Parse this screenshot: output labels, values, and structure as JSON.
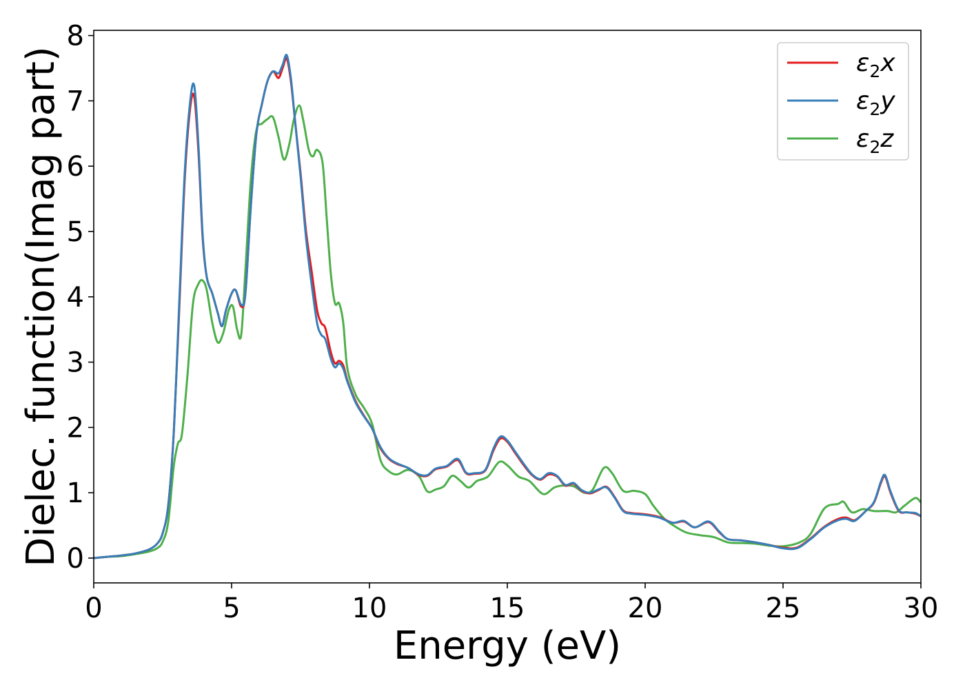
{
  "chart_data": {
    "type": "line",
    "title": "",
    "xlabel": "Energy (eV)",
    "ylabel": "Dielec. function(Imag part)",
    "xlim": [
      0,
      30
    ],
    "ylim": [
      -0.38,
      8.08
    ],
    "xticks": [
      0,
      5,
      10,
      15,
      20,
      25,
      30
    ],
    "yticks": [
      0,
      1,
      2,
      3,
      4,
      5,
      6,
      7,
      8
    ],
    "grid": false,
    "legend_position": "top-right",
    "series": [
      {
        "name": "ε₂x",
        "legend_base": "ε",
        "legend_sub": "2",
        "legend_suffix": "x",
        "color": "#e41a1c",
        "points": [
          [
            0,
            0
          ],
          [
            0.5,
            0.02
          ],
          [
            1,
            0.04
          ],
          [
            1.5,
            0.07
          ],
          [
            2,
            0.13
          ],
          [
            2.3,
            0.22
          ],
          [
            2.5,
            0.38
          ],
          [
            2.7,
            0.8
          ],
          [
            2.9,
            1.9
          ],
          [
            3.1,
            3.8
          ],
          [
            3.3,
            5.8
          ],
          [
            3.5,
            6.9
          ],
          [
            3.65,
            7.05
          ],
          [
            3.8,
            6.2
          ],
          [
            3.95,
            4.9
          ],
          [
            4.1,
            4.3
          ],
          [
            4.3,
            4.05
          ],
          [
            4.5,
            3.75
          ],
          [
            4.65,
            3.55
          ],
          [
            4.8,
            3.8
          ],
          [
            5.0,
            4.05
          ],
          [
            5.15,
            4.1
          ],
          [
            5.35,
            3.85
          ],
          [
            5.5,
            4.05
          ],
          [
            5.7,
            5.4
          ],
          [
            5.9,
            6.5
          ],
          [
            6.1,
            6.95
          ],
          [
            6.3,
            7.3
          ],
          [
            6.5,
            7.45
          ],
          [
            6.7,
            7.35
          ],
          [
            6.85,
            7.5
          ],
          [
            7.0,
            7.65
          ],
          [
            7.15,
            7.3
          ],
          [
            7.3,
            6.7
          ],
          [
            7.5,
            5.9
          ],
          [
            7.7,
            5.0
          ],
          [
            7.9,
            4.4
          ],
          [
            8.1,
            3.8
          ],
          [
            8.25,
            3.6
          ],
          [
            8.4,
            3.52
          ],
          [
            8.6,
            3.15
          ],
          [
            8.75,
            2.98
          ],
          [
            8.9,
            3.02
          ],
          [
            9.05,
            2.95
          ],
          [
            9.2,
            2.72
          ],
          [
            9.5,
            2.4
          ],
          [
            9.8,
            2.18
          ],
          [
            10.1,
            1.98
          ],
          [
            10.4,
            1.68
          ],
          [
            10.7,
            1.52
          ],
          [
            11.0,
            1.44
          ],
          [
            11.4,
            1.38
          ],
          [
            11.8,
            1.27
          ],
          [
            12.1,
            1.26
          ],
          [
            12.4,
            1.36
          ],
          [
            12.8,
            1.4
          ],
          [
            13.2,
            1.5
          ],
          [
            13.5,
            1.3
          ],
          [
            13.8,
            1.29
          ],
          [
            14.2,
            1.34
          ],
          [
            14.5,
            1.65
          ],
          [
            14.75,
            1.83
          ],
          [
            15.0,
            1.78
          ],
          [
            15.3,
            1.6
          ],
          [
            15.6,
            1.42
          ],
          [
            15.9,
            1.27
          ],
          [
            16.2,
            1.2
          ],
          [
            16.5,
            1.28
          ],
          [
            16.8,
            1.25
          ],
          [
            17.1,
            1.11
          ],
          [
            17.4,
            1.14
          ],
          [
            17.7,
            1.03
          ],
          [
            18.0,
            0.99
          ],
          [
            18.3,
            1.04
          ],
          [
            18.6,
            1.09
          ],
          [
            18.9,
            0.93
          ],
          [
            19.2,
            0.73
          ],
          [
            19.5,
            0.69
          ],
          [
            20.0,
            0.67
          ],
          [
            20.5,
            0.63
          ],
          [
            21.0,
            0.54
          ],
          [
            21.4,
            0.56
          ],
          [
            21.8,
            0.47
          ],
          [
            22.3,
            0.55
          ],
          [
            22.7,
            0.39
          ],
          [
            23.0,
            0.29
          ],
          [
            23.5,
            0.27
          ],
          [
            24.0,
            0.24
          ],
          [
            24.5,
            0.2
          ],
          [
            25.0,
            0.16
          ],
          [
            25.5,
            0.16
          ],
          [
            26.0,
            0.3
          ],
          [
            26.5,
            0.48
          ],
          [
            27.0,
            0.6
          ],
          [
            27.3,
            0.62
          ],
          [
            27.6,
            0.58
          ],
          [
            28.0,
            0.72
          ],
          [
            28.3,
            0.85
          ],
          [
            28.55,
            1.15
          ],
          [
            28.7,
            1.25
          ],
          [
            28.9,
            1.0
          ],
          [
            29.2,
            0.72
          ],
          [
            29.5,
            0.7
          ],
          [
            29.8,
            0.68
          ],
          [
            30,
            0.64
          ]
        ]
      },
      {
        "name": "ε₂y",
        "legend_base": "ε",
        "legend_sub": "2",
        "legend_suffix": "y",
        "color": "#377eb8",
        "points": [
          [
            0,
            0
          ],
          [
            0.5,
            0.02
          ],
          [
            1,
            0.04
          ],
          [
            1.5,
            0.07
          ],
          [
            2,
            0.13
          ],
          [
            2.3,
            0.22
          ],
          [
            2.5,
            0.38
          ],
          [
            2.7,
            0.8
          ],
          [
            2.9,
            1.9
          ],
          [
            3.1,
            3.9
          ],
          [
            3.3,
            5.9
          ],
          [
            3.5,
            7.0
          ],
          [
            3.65,
            7.22
          ],
          [
            3.8,
            6.3
          ],
          [
            3.95,
            4.95
          ],
          [
            4.1,
            4.3
          ],
          [
            4.3,
            4.05
          ],
          [
            4.5,
            3.75
          ],
          [
            4.65,
            3.55
          ],
          [
            4.8,
            3.8
          ],
          [
            5.0,
            4.05
          ],
          [
            5.15,
            4.1
          ],
          [
            5.35,
            3.88
          ],
          [
            5.5,
            4.05
          ],
          [
            5.7,
            5.4
          ],
          [
            5.9,
            6.5
          ],
          [
            6.1,
            6.95
          ],
          [
            6.3,
            7.3
          ],
          [
            6.5,
            7.45
          ],
          [
            6.7,
            7.42
          ],
          [
            6.85,
            7.55
          ],
          [
            7.0,
            7.7
          ],
          [
            7.15,
            7.35
          ],
          [
            7.3,
            6.7
          ],
          [
            7.5,
            5.85
          ],
          [
            7.7,
            4.9
          ],
          [
            7.9,
            4.2
          ],
          [
            8.1,
            3.6
          ],
          [
            8.25,
            3.42
          ],
          [
            8.4,
            3.35
          ],
          [
            8.6,
            3.05
          ],
          [
            8.75,
            2.92
          ],
          [
            8.9,
            2.98
          ],
          [
            9.05,
            2.9
          ],
          [
            9.2,
            2.7
          ],
          [
            9.5,
            2.38
          ],
          [
            9.8,
            2.17
          ],
          [
            10.1,
            1.98
          ],
          [
            10.4,
            1.7
          ],
          [
            10.7,
            1.53
          ],
          [
            11.0,
            1.45
          ],
          [
            11.4,
            1.38
          ],
          [
            11.8,
            1.28
          ],
          [
            12.1,
            1.27
          ],
          [
            12.4,
            1.37
          ],
          [
            12.8,
            1.41
          ],
          [
            13.2,
            1.52
          ],
          [
            13.5,
            1.31
          ],
          [
            13.8,
            1.3
          ],
          [
            14.2,
            1.35
          ],
          [
            14.5,
            1.68
          ],
          [
            14.75,
            1.86
          ],
          [
            15.0,
            1.8
          ],
          [
            15.3,
            1.62
          ],
          [
            15.6,
            1.44
          ],
          [
            15.9,
            1.28
          ],
          [
            16.2,
            1.21
          ],
          [
            16.5,
            1.3
          ],
          [
            16.8,
            1.26
          ],
          [
            17.1,
            1.12
          ],
          [
            17.4,
            1.15
          ],
          [
            17.7,
            1.04
          ],
          [
            18.0,
            1.0
          ],
          [
            18.3,
            1.05
          ],
          [
            18.6,
            1.08
          ],
          [
            18.9,
            0.92
          ],
          [
            19.2,
            0.72
          ],
          [
            19.5,
            0.68
          ],
          [
            20.0,
            0.66
          ],
          [
            20.5,
            0.62
          ],
          [
            21.0,
            0.54
          ],
          [
            21.4,
            0.57
          ],
          [
            21.8,
            0.47
          ],
          [
            22.3,
            0.56
          ],
          [
            22.7,
            0.4
          ],
          [
            23.0,
            0.29
          ],
          [
            23.5,
            0.27
          ],
          [
            24.0,
            0.24
          ],
          [
            24.5,
            0.2
          ],
          [
            25.0,
            0.15
          ],
          [
            25.5,
            0.15
          ],
          [
            26.0,
            0.29
          ],
          [
            26.5,
            0.47
          ],
          [
            27.0,
            0.58
          ],
          [
            27.3,
            0.6
          ],
          [
            27.6,
            0.57
          ],
          [
            28.0,
            0.72
          ],
          [
            28.3,
            0.86
          ],
          [
            28.55,
            1.17
          ],
          [
            28.7,
            1.27
          ],
          [
            28.9,
            1.02
          ],
          [
            29.2,
            0.73
          ],
          [
            29.5,
            0.7
          ],
          [
            29.8,
            0.69
          ],
          [
            30,
            0.64
          ]
        ]
      },
      {
        "name": "ε₂z",
        "legend_base": "ε",
        "legend_sub": "2",
        "legend_suffix": "z",
        "color": "#4daf4a",
        "points": [
          [
            0,
            0
          ],
          [
            0.5,
            0.02
          ],
          [
            1,
            0.03
          ],
          [
            1.5,
            0.06
          ],
          [
            2,
            0.1
          ],
          [
            2.3,
            0.15
          ],
          [
            2.5,
            0.25
          ],
          [
            2.7,
            0.55
          ],
          [
            2.9,
            1.4
          ],
          [
            3.05,
            1.75
          ],
          [
            3.2,
            1.9
          ],
          [
            3.4,
            2.8
          ],
          [
            3.6,
            3.9
          ],
          [
            3.8,
            4.2
          ],
          [
            3.95,
            4.25
          ],
          [
            4.1,
            4.1
          ],
          [
            4.3,
            3.6
          ],
          [
            4.5,
            3.3
          ],
          [
            4.7,
            3.45
          ],
          [
            4.9,
            3.8
          ],
          [
            5.05,
            3.85
          ],
          [
            5.2,
            3.5
          ],
          [
            5.35,
            3.42
          ],
          [
            5.5,
            4.4
          ],
          [
            5.7,
            5.8
          ],
          [
            5.9,
            6.55
          ],
          [
            6.1,
            6.65
          ],
          [
            6.3,
            6.72
          ],
          [
            6.5,
            6.75
          ],
          [
            6.7,
            6.45
          ],
          [
            6.9,
            6.1
          ],
          [
            7.1,
            6.35
          ],
          [
            7.25,
            6.7
          ],
          [
            7.45,
            6.93
          ],
          [
            7.6,
            6.7
          ],
          [
            7.8,
            6.25
          ],
          [
            7.95,
            6.15
          ],
          [
            8.1,
            6.25
          ],
          [
            8.3,
            6.05
          ],
          [
            8.45,
            5.2
          ],
          [
            8.6,
            4.35
          ],
          [
            8.75,
            3.9
          ],
          [
            8.9,
            3.9
          ],
          [
            9.05,
            3.6
          ],
          [
            9.2,
            2.9
          ],
          [
            9.5,
            2.5
          ],
          [
            9.8,
            2.3
          ],
          [
            10.1,
            2.05
          ],
          [
            10.4,
            1.5
          ],
          [
            10.7,
            1.33
          ],
          [
            11.0,
            1.28
          ],
          [
            11.4,
            1.35
          ],
          [
            11.8,
            1.25
          ],
          [
            12.1,
            1.02
          ],
          [
            12.4,
            1.05
          ],
          [
            12.7,
            1.1
          ],
          [
            13.0,
            1.26
          ],
          [
            13.3,
            1.18
          ],
          [
            13.6,
            1.08
          ],
          [
            13.9,
            1.18
          ],
          [
            14.3,
            1.25
          ],
          [
            14.7,
            1.47
          ],
          [
            15.0,
            1.42
          ],
          [
            15.4,
            1.25
          ],
          [
            15.8,
            1.18
          ],
          [
            16.3,
            0.98
          ],
          [
            16.7,
            1.08
          ],
          [
            17.0,
            1.11
          ],
          [
            17.4,
            1.1
          ],
          [
            17.8,
            1.0
          ],
          [
            18.1,
            1.05
          ],
          [
            18.5,
            1.38
          ],
          [
            18.8,
            1.3
          ],
          [
            19.2,
            1.03
          ],
          [
            19.6,
            1.03
          ],
          [
            20.0,
            0.98
          ],
          [
            20.3,
            0.8
          ],
          [
            20.7,
            0.6
          ],
          [
            21.1,
            0.48
          ],
          [
            21.5,
            0.39
          ],
          [
            22.0,
            0.35
          ],
          [
            22.5,
            0.32
          ],
          [
            23.0,
            0.24
          ],
          [
            23.5,
            0.23
          ],
          [
            24.0,
            0.22
          ],
          [
            24.5,
            0.19
          ],
          [
            25.0,
            0.18
          ],
          [
            25.6,
            0.24
          ],
          [
            26.0,
            0.37
          ],
          [
            26.5,
            0.76
          ],
          [
            27.0,
            0.83
          ],
          [
            27.2,
            0.86
          ],
          [
            27.5,
            0.7
          ],
          [
            27.9,
            0.75
          ],
          [
            28.3,
            0.72
          ],
          [
            28.8,
            0.72
          ],
          [
            29.1,
            0.7
          ],
          [
            29.4,
            0.8
          ],
          [
            29.8,
            0.92
          ],
          [
            30,
            0.85
          ]
        ]
      }
    ]
  }
}
